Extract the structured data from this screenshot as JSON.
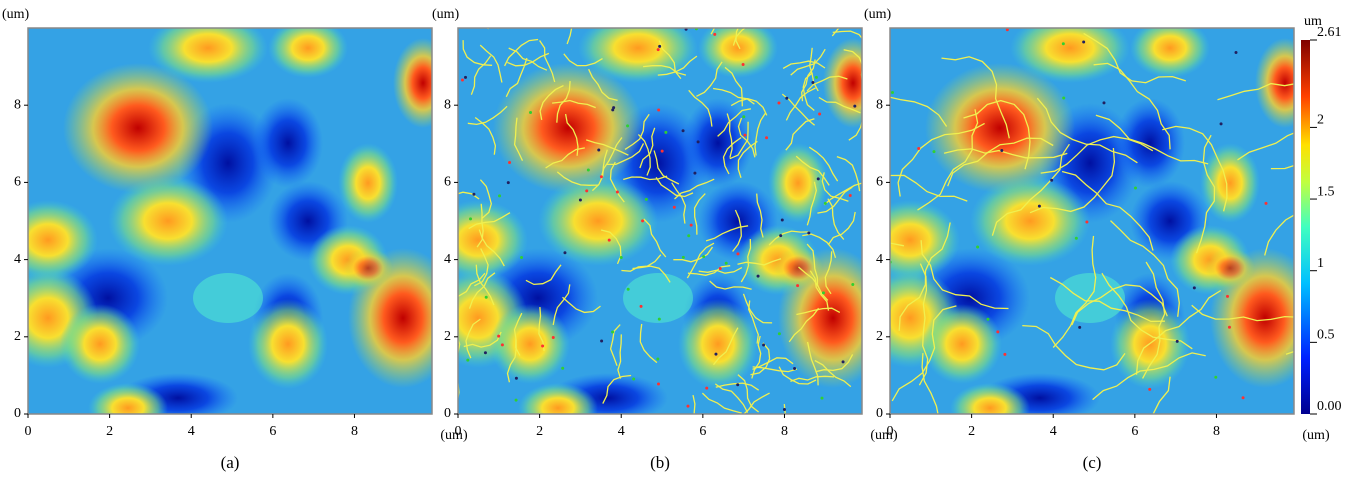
{
  "panels": [
    {
      "y_unit": "(um)",
      "x_unit": "(um)",
      "xticks": [
        0,
        2,
        4,
        6,
        8
      ],
      "yticks": [
        0,
        2,
        4,
        6,
        8
      ],
      "xlim": [
        0,
        9.9
      ],
      "ylim": [
        0,
        10
      ],
      "caption": "(a)"
    },
    {
      "y_unit": "(um)",
      "x_unit": "(um)",
      "xticks": [
        0,
        2,
        4,
        6,
        8
      ],
      "yticks": [
        0,
        2,
        4,
        6,
        8
      ],
      "xlim": [
        0,
        9.9
      ],
      "ylim": [
        0,
        10
      ],
      "caption": "(b)"
    },
    {
      "y_unit": "(um)",
      "x_unit": "(um)",
      "xticks": [
        0,
        2,
        4,
        6,
        8
      ],
      "yticks": [
        0,
        2,
        4,
        6,
        8
      ],
      "xlim": [
        0,
        9.9
      ],
      "ylim": [
        0,
        10
      ],
      "caption": "(c)"
    }
  ],
  "colorbar": {
    "unit": "um",
    "ticks": [
      {
        "value": 0,
        "label": "0.00"
      },
      {
        "value": 0.5,
        "label": "0.5"
      },
      1,
      1.5,
      2,
      2.61
    ]
  }
}
